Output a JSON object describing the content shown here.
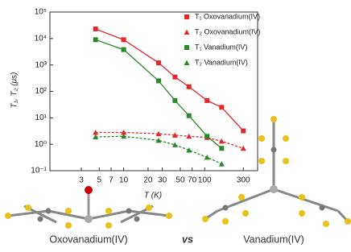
{
  "chart_data": {
    "type": "scatter",
    "x_label": "T (K)",
    "y_label": "T₁, T₂ (μs)",
    "xscale": "log",
    "yscale": "log",
    "xlim": [
      1.23,
      450
    ],
    "ylim": [
      0.1,
      100000
    ],
    "xticks": [
      3,
      5,
      7,
      10,
      20,
      30,
      50,
      70,
      100,
      300
    ],
    "yticks": [
      {
        "value": 0.1,
        "label": "10⁻¹"
      },
      {
        "value": 1,
        "label": "10⁰"
      },
      {
        "value": 10,
        "label": "10¹"
      },
      {
        "value": 100,
        "label": "10²"
      },
      {
        "value": 1000,
        "label": "10³"
      },
      {
        "value": 10000,
        "label": "10⁴"
      },
      {
        "value": 100000,
        "label": "10⁵"
      }
    ],
    "legend": "upper right",
    "series": [
      {
        "name": "T₁ Oxovanadium(IV)",
        "color": "#e5262a",
        "marker": "square",
        "line_style": "solid",
        "x": [
          4.5,
          10,
          27,
          43,
          64,
          107,
          162,
          300
        ],
        "values": [
          23000,
          9000,
          1200,
          350,
          150,
          45,
          25,
          3.2
        ]
      },
      {
        "name": "T₂ Oxovanadium(IV)",
        "color": "#e5262a",
        "marker": "triangle",
        "line_style": "dashed",
        "x": [
          4.5,
          10,
          27,
          43,
          64,
          107,
          162,
          300
        ],
        "values": [
          2.8,
          2.8,
          2.5,
          2.2,
          2.0,
          1.8,
          1.3,
          0.7
        ]
      },
      {
        "name": "T₁ Vanadium(IV)",
        "color": "#2a8a2a",
        "marker": "square",
        "line_style": "solid",
        "x": [
          4.5,
          10,
          27,
          43,
          64,
          107,
          162
        ],
        "values": [
          9000,
          3800,
          250,
          45,
          12,
          2,
          0.7
        ]
      },
      {
        "name": "T₂ Vanadium(IV)",
        "color": "#2a8a2a",
        "marker": "triangle",
        "line_style": "dashed",
        "x": [
          4.5,
          10,
          27,
          43,
          64,
          107,
          162
        ],
        "values": [
          1.9,
          2.0,
          1.4,
          0.95,
          0.6,
          0.32,
          0.18
        ]
      }
    ],
    "captions": [
      "Oxovanadium(IV)",
      "vs",
      "Vanadium(IV)"
    ]
  }
}
